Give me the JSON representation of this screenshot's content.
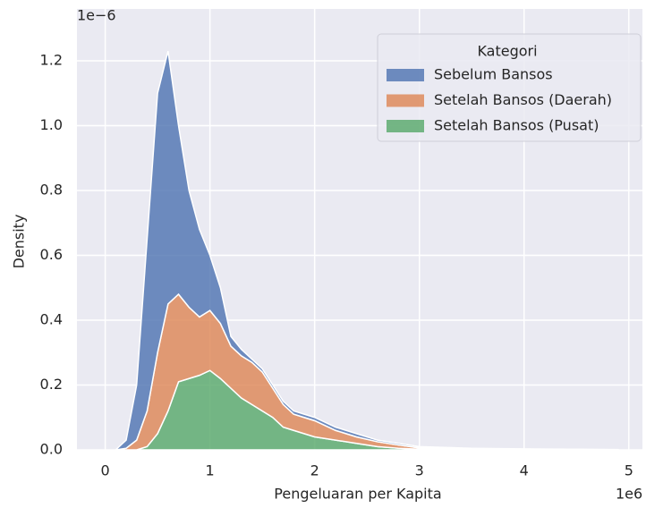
{
  "chart_data": {
    "type": "stacked_kde",
    "xlabel": "Pengeluaran per Kapita",
    "ylabel": "Density",
    "x_offset_label": "1e6",
    "y_offset_label": "1e−6",
    "legend_title": "Kategori",
    "legend": "upper right",
    "grid": true,
    "xlim": [
      -0.27,
      5.13
    ],
    "ylim": [
      0,
      1.36
    ],
    "xticks": [
      0,
      1,
      2,
      3,
      4,
      5
    ],
    "yticks": [
      {
        "value": 0,
        "label": "0.0"
      },
      0.2,
      0.4,
      0.6,
      0.8,
      {
        "value": 1,
        "label": "1.0"
      },
      1.2
    ],
    "x": [
      0.1,
      0.2,
      0.3,
      0.4,
      0.5,
      0.6,
      0.7,
      0.8,
      0.9,
      1.0,
      1.1,
      1.2,
      1.3,
      1.4,
      1.5,
      1.6,
      1.7,
      1.8,
      1.9,
      2.0,
      2.2,
      2.4,
      2.6,
      2.8,
      3.0,
      3.5,
      4.0,
      4.5,
      4.9
    ],
    "series": [
      {
        "name": "Sebelum Bansos",
        "color": "#4c72b0",
        "values": [
          0,
          0.025,
          0.17,
          0.53,
          0.8,
          0.78,
          0.52,
          0.36,
          0.27,
          0.17,
          0.11,
          0.03,
          0.02,
          0.01,
          0.01,
          0.01,
          0.01,
          0.01,
          0.01,
          0.01,
          0.01,
          0.01,
          0.005,
          0.005,
          0.004,
          0.003,
          0.002,
          0.002,
          0.001
        ]
      },
      {
        "name": "Setelah Bansos (Daerah)",
        "color": "#dd8452",
        "values": [
          0,
          0.005,
          0.03,
          0.11,
          0.25,
          0.33,
          0.27,
          0.22,
          0.18,
          0.185,
          0.17,
          0.13,
          0.13,
          0.13,
          0.12,
          0.09,
          0.07,
          0.05,
          0.05,
          0.05,
          0.03,
          0.02,
          0.015,
          0.01,
          0.004,
          0.001,
          0.001,
          0,
          0
        ]
      },
      {
        "name": "Setelah Bansos (Pusat)",
        "color": "#55a868",
        "values": [
          0,
          0,
          0,
          0.01,
          0.05,
          0.12,
          0.21,
          0.22,
          0.23,
          0.245,
          0.22,
          0.19,
          0.16,
          0.14,
          0.12,
          0.1,
          0.07,
          0.06,
          0.05,
          0.04,
          0.03,
          0.02,
          0.01,
          0.005,
          0.002,
          0.001,
          0,
          0,
          0
        ]
      }
    ]
  }
}
